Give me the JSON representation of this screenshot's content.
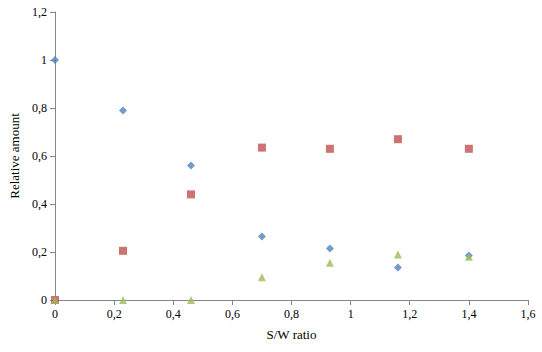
{
  "chart_data": {
    "type": "scatter",
    "x_label": "S/W ratio",
    "y_label": "Relative amount",
    "x": [
      0,
      0.23,
      0.46,
      0.7,
      0.93,
      1.16,
      1.4
    ],
    "series": [
      {
        "color": "#4F81BD",
        "marker": "diamond",
        "values": [
          1,
          0.79,
          0.56,
          0.265,
          0.215,
          0.135,
          0.185
        ]
      },
      {
        "color": "#C0504D",
        "marker": "square",
        "values": [
          0,
          0.205,
          0.44,
          0.635,
          0.63,
          0.67,
          0.63
        ]
      },
      {
        "color": "#9BBB59",
        "marker": "triangle",
        "values": [
          0,
          0,
          0,
          0.095,
          0.155,
          0.19,
          0.18
        ]
      }
    ],
    "xlim": [
      0,
      1.6
    ],
    "xticks": [
      0,
      {
        "value": 0.2,
        "label": "0,2"
      },
      {
        "value": 0.4,
        "label": "0,4"
      },
      {
        "value": 0.6,
        "label": "0,6"
      },
      {
        "value": 0.8,
        "label": "0,8"
      },
      1,
      {
        "value": 1.2,
        "label": "1,2"
      },
      {
        "value": 1.4,
        "label": "1,4"
      },
      {
        "value": 1.6,
        "label": "1,6"
      }
    ],
    "ylim": [
      0,
      1.2
    ],
    "yticks": [
      0,
      {
        "value": 0.2,
        "label": "0,2"
      },
      {
        "value": 0.4,
        "label": "0,4"
      },
      {
        "value": 0.6,
        "label": "0,6"
      },
      {
        "value": 0.8,
        "label": "0,8"
      },
      1,
      {
        "value": 1.2,
        "label": "1,2"
      }
    ],
    "grid": false
  }
}
